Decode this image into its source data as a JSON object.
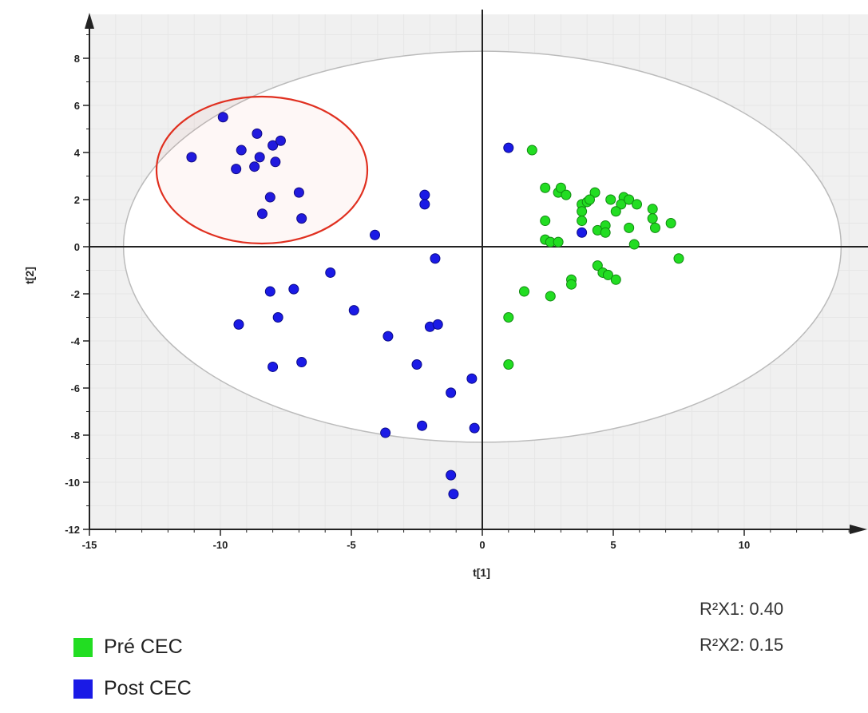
{
  "chart_data": {
    "type": "scatter",
    "xlabel": "t[1]",
    "ylabel": "t[2]",
    "xlim": [
      -15,
      14.5
    ],
    "ylim": [
      -12,
      9.5
    ],
    "x_ticks": [
      -15,
      -10,
      -5,
      0,
      5,
      10
    ],
    "y_ticks": [
      -12,
      -10,
      -8,
      -6,
      -4,
      -2,
      0,
      2,
      4,
      6,
      8
    ],
    "grid": true,
    "confidence_ellipse": {
      "center": [
        0,
        0
      ],
      "semi_axis_x": 13.7,
      "semi_axis_y": 8.3
    },
    "series": [
      {
        "name": "Pré CEC",
        "color": "#22dd22",
        "points": [
          [
            1.9,
            4.1
          ],
          [
            2.4,
            2.5
          ],
          [
            2.9,
            2.3
          ],
          [
            3.0,
            2.5
          ],
          [
            3.2,
            2.2
          ],
          [
            2.4,
            1.1
          ],
          [
            3.8,
            1.8
          ],
          [
            4.0,
            1.9
          ],
          [
            4.3,
            2.3
          ],
          [
            3.8,
            1.5
          ],
          [
            3.8,
            1.1
          ],
          [
            4.1,
            2.0
          ],
          [
            4.9,
            2.0
          ],
          [
            5.4,
            2.1
          ],
          [
            5.3,
            1.8
          ],
          [
            5.6,
            2.0
          ],
          [
            5.9,
            1.8
          ],
          [
            5.1,
            1.5
          ],
          [
            6.5,
            1.6
          ],
          [
            6.5,
            1.2
          ],
          [
            6.6,
            0.8
          ],
          [
            7.2,
            1.0
          ],
          [
            4.4,
            0.7
          ],
          [
            4.7,
            0.9
          ],
          [
            4.7,
            0.6
          ],
          [
            5.6,
            0.8
          ],
          [
            2.4,
            0.3
          ],
          [
            2.6,
            0.2
          ],
          [
            2.9,
            0.2
          ],
          [
            5.8,
            0.1
          ],
          [
            7.5,
            -0.5
          ],
          [
            4.4,
            -0.8
          ],
          [
            4.6,
            -1.1
          ],
          [
            4.8,
            -1.2
          ],
          [
            5.1,
            -1.4
          ],
          [
            3.4,
            -1.4
          ],
          [
            3.4,
            -1.6
          ],
          [
            1.6,
            -1.9
          ],
          [
            2.6,
            -2.1
          ],
          [
            1.0,
            -3.0
          ],
          [
            1.0,
            -5.0
          ]
        ]
      },
      {
        "name": "Post CEC",
        "color": "#1a1ae6",
        "points": [
          [
            -9.9,
            5.5
          ],
          [
            -8.6,
            4.8
          ],
          [
            -9.2,
            4.1
          ],
          [
            -8.0,
            4.3
          ],
          [
            -7.7,
            4.5
          ],
          [
            -11.1,
            3.8
          ],
          [
            -8.5,
            3.8
          ],
          [
            -7.9,
            3.6
          ],
          [
            -9.4,
            3.3
          ],
          [
            -8.7,
            3.4
          ],
          [
            -8.1,
            2.1
          ],
          [
            -7.0,
            2.3
          ],
          [
            -8.4,
            1.4
          ],
          [
            -6.9,
            1.2
          ],
          [
            -4.1,
            0.5
          ],
          [
            -2.2,
            2.2
          ],
          [
            -2.2,
            1.8
          ],
          [
            -1.8,
            -0.5
          ],
          [
            1.0,
            4.2
          ],
          [
            3.8,
            0.6
          ],
          [
            -5.8,
            -1.1
          ],
          [
            -7.2,
            -1.8
          ],
          [
            -8.1,
            -1.9
          ],
          [
            -4.9,
            -2.7
          ],
          [
            -9.3,
            -3.3
          ],
          [
            -7.8,
            -3.0
          ],
          [
            -3.6,
            -3.8
          ],
          [
            -2.0,
            -3.4
          ],
          [
            -1.7,
            -3.3
          ],
          [
            -8.0,
            -5.1
          ],
          [
            -6.9,
            -4.9
          ],
          [
            -2.5,
            -5.0
          ],
          [
            -0.4,
            -5.6
          ],
          [
            -1.2,
            -6.2
          ],
          [
            -2.3,
            -7.6
          ],
          [
            -3.7,
            -7.9
          ],
          [
            -0.3,
            -7.7
          ],
          [
            -1.2,
            -9.7
          ],
          [
            -1.1,
            -10.5
          ]
        ]
      }
    ]
  },
  "stats": {
    "r2x1": "R²X1: 0.40",
    "r2x2": "R²X2: 0.15"
  },
  "colors": {
    "highlight_circle": "#e03020",
    "axis": "#222222",
    "grid": "#e6e6e6"
  }
}
